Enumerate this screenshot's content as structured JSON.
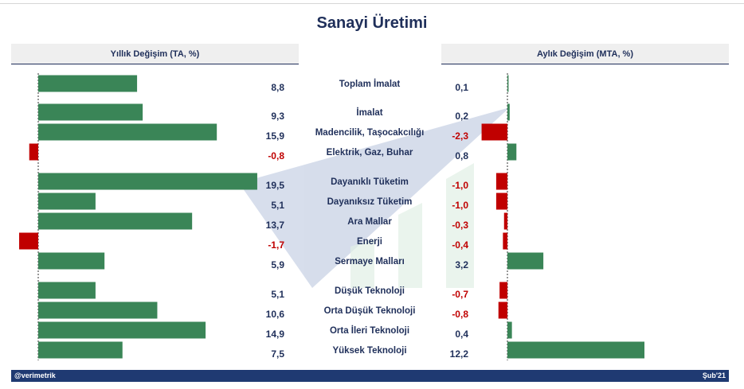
{
  "title": "Sanayi Üretimi",
  "left_header": "Yıllık Değişim (TA, %)",
  "right_header": "Aylık Değişim (MTA, %)",
  "footer": {
    "left": "@verimetrik",
    "right": "Şub'21"
  },
  "colors": {
    "positive": "#3a8557",
    "negative": "#c00000",
    "navy": "#1f2f5a"
  },
  "chart_data": [
    {
      "type": "bar",
      "orientation": "horizontal",
      "title": "Yıllık Değişim (TA, %)",
      "categories": [
        "Toplam İmalat",
        "İmalat",
        "Madencilik, Taşocakcılığı",
        "Elektrik, Gaz, Buhar",
        "Dayanıklı Tüketim",
        "Dayanıksız Tüketim",
        "Ara Mallar",
        "Enerji",
        "Sermaye Malları",
        "Düşük Teknoloji",
        "Orta Düşük Teknoloji",
        "Orta İleri Teknoloji",
        "Yüksek Teknoloji"
      ],
      "values": [
        8.8,
        9.3,
        15.9,
        -0.8,
        19.5,
        5.1,
        13.7,
        -1.7,
        5.9,
        5.1,
        10.6,
        14.9,
        7.5
      ],
      "labels": [
        "8,8",
        "9,3",
        "15,9",
        "-0,8",
        "19,5",
        "5,1",
        "13,7",
        "-1,7",
        "5,9",
        "5,1",
        "10,6",
        "14,9",
        "7,5"
      ]
    },
    {
      "type": "bar",
      "orientation": "horizontal",
      "title": "Aylık Değişim (MTA, %)",
      "categories": [
        "Toplam İmalat",
        "İmalat",
        "Madencilik, Taşocakcılığı",
        "Elektrik, Gaz, Buhar",
        "Dayanıklı Tüketim",
        "Dayanıksız Tüketim",
        "Ara Mallar",
        "Enerji",
        "Sermaye Malları",
        "Düşük Teknoloji",
        "Orta Düşük Teknoloji",
        "Orta İleri Teknoloji",
        "Yüksek Teknoloji"
      ],
      "values": [
        0.1,
        0.2,
        -2.3,
        0.8,
        -1.0,
        -1.0,
        -0.3,
        -0.4,
        3.2,
        -0.7,
        -0.8,
        0.4,
        12.2
      ],
      "labels": [
        "0,1",
        "0,2",
        "-2,3",
        "0,8",
        "-1,0",
        "-1,0",
        "-0,3",
        "-0,4",
        "3,2",
        "-0,7",
        "-0,8",
        "0,4",
        "12,2"
      ]
    }
  ]
}
